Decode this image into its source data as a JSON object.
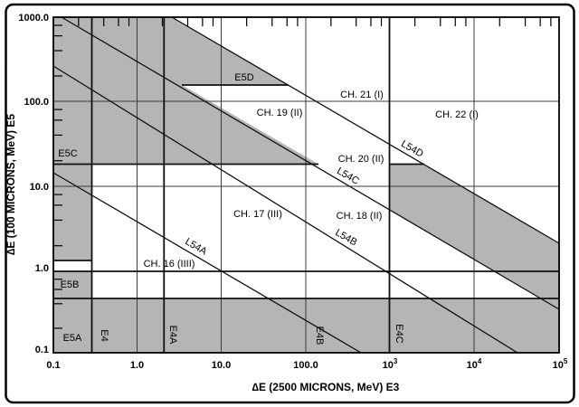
{
  "colors": {
    "shade_gray": "#b5b5b5",
    "line_black": "#101010",
    "background": "#ffffff"
  },
  "y_axis": {
    "title": "∆E (100 MICRONS, MeV) E5",
    "ticks": [
      "1000.0",
      "100.0",
      "10.0",
      "1.0",
      "0.1"
    ]
  },
  "x_axis": {
    "title": "∆E (2500 MICRONS, MeV) E3",
    "ticks_plain": [
      "0.1",
      "1.0",
      "10.0",
      "100.0"
    ],
    "ticks_sup": [
      {
        "base": "10",
        "exp": "3"
      },
      {
        "base": "10",
        "exp": "4"
      },
      {
        "base": "10",
        "exp": "5"
      }
    ]
  },
  "labels": {
    "e5d": "E5D",
    "e5c": "E5C",
    "e5b": "E5B",
    "e5a": "E5A",
    "e4": "E4",
    "e4a": "E4A",
    "e4b": "E4B",
    "e4c": "E4C",
    "ch16": "CH. 16 (IIII)",
    "ch17": "CH. 17 (III)",
    "ch18": "CH. 18 (II)",
    "ch19": "CH. 19 (II)",
    "ch20": "CH. 20 (II)",
    "ch21": "CH. 21 (I)",
    "ch22": "CH. 22 (I)",
    "l54a": "L54A",
    "l54b": "L54B",
    "l54c": "L54C",
    "l54d": "L54D"
  },
  "chart_data": {
    "type": "line",
    "title": "",
    "xlabel": "∆E (2500 MICRONS, MeV) E3",
    "ylabel": "∆E (100 MICRONS, MeV) E5",
    "xscale": "log",
    "yscale": "log",
    "xlim": [
      0.1,
      100000
    ],
    "ylim": [
      0.1,
      1000
    ],
    "grid": "major decades, minor log ticks at 2/4/6/8 on top and left edges",
    "legend_position": "none",
    "series": [
      {
        "name": "L54A",
        "x": [
          0.1,
          450
        ],
        "y": [
          14,
          0.1
        ]
      },
      {
        "name": "L54B",
        "x": [
          0.1,
          32000
        ],
        "y": [
          280,
          0.1
        ]
      },
      {
        "name": "L54C",
        "x": [
          0.125,
          100000
        ],
        "y": [
          1000,
          0.33
        ]
      },
      {
        "name": "L54D",
        "x": [
          2.5,
          100000
        ],
        "y": [
          1000,
          2.0
        ]
      }
    ],
    "shaded_regions": [
      {
        "name": "upper-left-saturation",
        "description": "gray region from top-left bounded right by L54D, notched at y≈160 between L54C and L54D (E5D wedge), bottom edge y≈18 down to x≈130"
      },
      {
        "name": "left-column",
        "description": "gray column x<0.3 from y=1000 down to y≈1.3 (E5C zone)"
      },
      {
        "name": "e5b-box",
        "description": "gray box x<0.3, 0.45<y<1.0 (E5B)"
      },
      {
        "name": "right-diagonal-band",
        "description": "gray band between L54C and L54D for x>1000, merging with bottom band at lower right"
      },
      {
        "name": "bottom-band",
        "description": "gray band y<0.45 full width, split at x=0.3, 2, 100, 1000 into E5A, E4, E4A, E4B, E4C"
      }
    ],
    "channel_regions": [
      "CH. 16 (IIII)",
      "CH. 17 (III)",
      "CH. 18 (II)",
      "CH. 19 (II)",
      "CH. 20 (II)",
      "CH. 21 (I)",
      "CH. 22 (I)"
    ],
    "detector_segment_labels": [
      "E5A",
      "E5B",
      "E5C",
      "E5D",
      "E4",
      "E4A",
      "E4B",
      "E4C"
    ]
  }
}
